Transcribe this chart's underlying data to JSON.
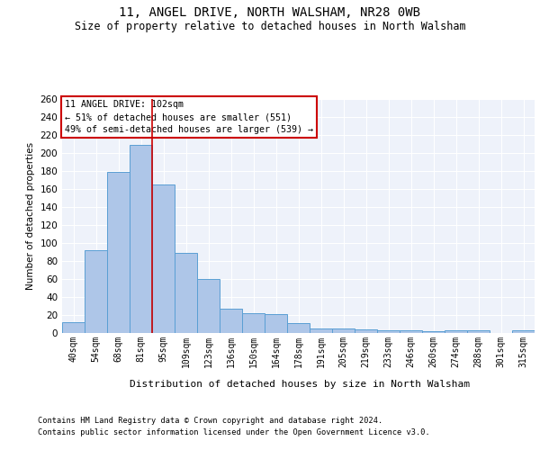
{
  "title_line1": "11, ANGEL DRIVE, NORTH WALSHAM, NR28 0WB",
  "title_line2": "Size of property relative to detached houses in North Walsham",
  "xlabel": "Distribution of detached houses by size in North Walsham",
  "ylabel": "Number of detached properties",
  "bar_labels": [
    "40sqm",
    "54sqm",
    "68sqm",
    "81sqm",
    "95sqm",
    "109sqm",
    "123sqm",
    "136sqm",
    "150sqm",
    "164sqm",
    "178sqm",
    "191sqm",
    "205sqm",
    "219sqm",
    "233sqm",
    "246sqm",
    "260sqm",
    "274sqm",
    "288sqm",
    "301sqm",
    "315sqm"
  ],
  "bar_heights": [
    12,
    92,
    179,
    209,
    165,
    89,
    60,
    27,
    22,
    21,
    11,
    5,
    5,
    4,
    3,
    3,
    2,
    3,
    3,
    0,
    3
  ],
  "bar_color": "#aec6e8",
  "bar_edge_color": "#5a9fd4",
  "ylim": [
    0,
    260
  ],
  "yticks": [
    0,
    20,
    40,
    60,
    80,
    100,
    120,
    140,
    160,
    180,
    200,
    220,
    240,
    260
  ],
  "property_bin_index": 4,
  "annotation_text": "11 ANGEL DRIVE: 102sqm\n← 51% of detached houses are smaller (551)\n49% of semi-detached houses are larger (539) →",
  "vline_color": "#cc0000",
  "annotation_box_color": "#cc0000",
  "footnote1": "Contains HM Land Registry data © Crown copyright and database right 2024.",
  "footnote2": "Contains public sector information licensed under the Open Government Licence v3.0.",
  "background_color": "#eef2fa",
  "grid_color": "#ffffff",
  "fig_background": "#ffffff"
}
